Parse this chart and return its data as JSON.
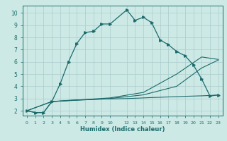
{
  "xlabel": "Humidex (Indice chaleur)",
  "bg_color": "#cce9e5",
  "grid_color": "#aacccc",
  "line_color": "#1a6b6b",
  "xlim": [
    -0.5,
    23.5
  ],
  "ylim": [
    1.6,
    10.6
  ],
  "yticks": [
    2,
    3,
    4,
    5,
    6,
    7,
    8,
    9,
    10
  ],
  "curve1_x": [
    0,
    1,
    2,
    3,
    4,
    5,
    6,
    7,
    8,
    9,
    10,
    12,
    13,
    14,
    15,
    16,
    17,
    18,
    19,
    20,
    21,
    22,
    23
  ],
  "curve1_y": [
    2.0,
    1.85,
    1.85,
    2.75,
    4.2,
    6.0,
    7.5,
    8.4,
    8.5,
    9.1,
    9.1,
    10.25,
    9.4,
    9.65,
    9.2,
    7.8,
    7.4,
    6.85,
    6.5,
    5.75,
    4.6,
    3.2,
    3.3
  ],
  "curve2_x": [
    0,
    1,
    2,
    3,
    4,
    5,
    6,
    7,
    8,
    9,
    10,
    11,
    12,
    13,
    14,
    15,
    16,
    17,
    18,
    19,
    20,
    21,
    22,
    23
  ],
  "curve2_y": [
    2.0,
    1.85,
    1.85,
    2.75,
    2.8,
    2.85,
    2.88,
    2.9,
    2.92,
    2.95,
    2.97,
    2.98,
    3.0,
    3.02,
    3.05,
    3.08,
    3.1,
    3.13,
    3.15,
    3.18,
    3.2,
    3.22,
    3.25,
    3.28
  ],
  "curve3_x": [
    0,
    3,
    10,
    14,
    18,
    21,
    23
  ],
  "curve3_y": [
    2.0,
    2.75,
    3.0,
    3.3,
    4.0,
    5.5,
    6.15
  ],
  "curve4_x": [
    0,
    3,
    10,
    14,
    18,
    21,
    23
  ],
  "curve4_y": [
    2.0,
    2.75,
    3.05,
    3.5,
    5.0,
    6.4,
    6.2
  ]
}
